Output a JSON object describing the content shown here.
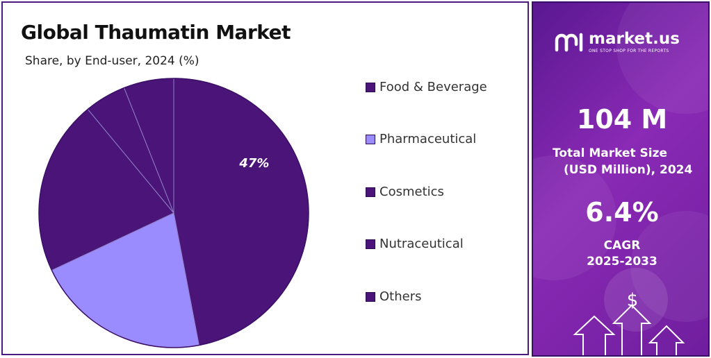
{
  "left": {
    "title": "Global Thaumatin Market",
    "subtitle": "Share, by End-user, 2024 (%)"
  },
  "chart_data": {
    "type": "pie",
    "categories": [
      "Food & Beverage",
      "Pharmaceutical",
      "Cosmetics",
      "Nutraceutical",
      "Others"
    ],
    "values": [
      47,
      21,
      21,
      5,
      6
    ],
    "colors": [
      "#4a1478",
      "#9a8cff",
      "#4a1478",
      "#4a1478",
      "#4a1478"
    ],
    "data_labels": [
      "47%",
      "",
      "",
      "",
      ""
    ],
    "legend_position": "right"
  },
  "legend": [
    {
      "label": "Food & Beverage",
      "color": "#4a1478"
    },
    {
      "label": "Pharmaceutical",
      "color": "#9a8cff"
    },
    {
      "label": "Cosmetics",
      "color": "#4a1478"
    },
    {
      "label": "Nutraceutical",
      "color": "#4a1478"
    },
    {
      "label": "Others",
      "color": "#4a1478"
    }
  ],
  "brand": {
    "name": "market.us",
    "tagline": "ONE STOP SHOP FOR THE REPORTS"
  },
  "stats": {
    "market_size_value": "104 M",
    "market_size_label_1": "Total Market Size",
    "market_size_label_2": "(USD Million), 2024",
    "cagr_value": "6.4%",
    "cagr_label_1": "CAGR",
    "cagr_label_2": "2025-2033"
  },
  "icons": {
    "dollar": "$"
  }
}
